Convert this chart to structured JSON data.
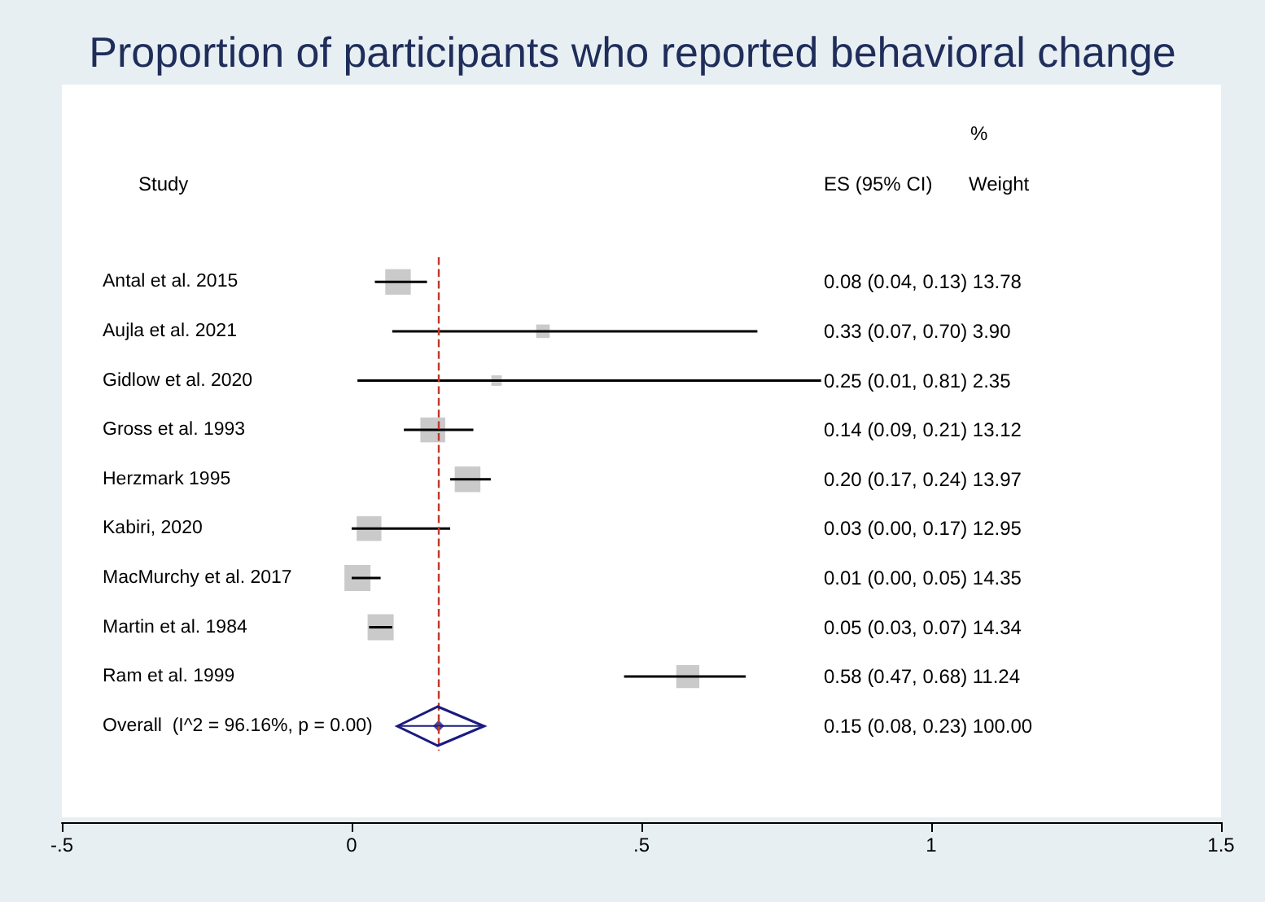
{
  "chart_data": {
    "type": "bubble",
    "title": "Proportion of participants who reported behavioral change",
    "categories": [
      "Antal et al. 2015",
      "Aujla et al. 2021",
      "Gidlow et al. 2020",
      "Gross et al. 1993",
      "Herzmark 1995",
      "Kabiri, 2020",
      "MacMurchy et al. 2017",
      "Martin et al. 1984",
      "Ram et al. 1999",
      "Overall  (I^2 = 96.16%, p = 0.00)"
    ],
    "orientation": "horizontal",
    "series": [
      {
        "color": "#bdbdbd",
        "marker": "square",
        "values": [
          0.08,
          0.33,
          0.25,
          0.14,
          0.2,
          0.03,
          0.01,
          0.05,
          0.58,
          null
        ],
        "errors": [
          [
            0.04,
            0.13
          ],
          [
            0.07,
            0.7
          ],
          [
            0.01,
            0.81
          ],
          [
            0.09,
            0.21
          ],
          [
            0.17,
            0.24
          ],
          [
            0.0,
            0.17
          ],
          [
            0.0,
            0.05
          ],
          [
            0.03,
            0.07
          ],
          [
            0.47,
            0.68
          ],
          null
        ],
        "sizes": [
          0.96,
          0.27,
          0.16,
          0.91,
          0.97,
          0.9,
          1,
          1,
          0.78,
          null
        ]
      },
      {
        "type": "scatter",
        "color": "#1a1a80",
        "marker": "diamond",
        "values": [
          null,
          null,
          null,
          null,
          null,
          null,
          null,
          null,
          null,
          0.15
        ],
        "errors": [
          null,
          null,
          null,
          null,
          null,
          null,
          null,
          null,
          null,
          [
            0.08,
            0.23
          ]
        ]
      }
    ],
    "xlim": [
      -0.5,
      1.5
    ],
    "xticks": [
      {
        "value": -0.5,
        "label": "-.5"
      },
      0,
      {
        "value": 0.5,
        "label": ".5"
      },
      1,
      1.5
    ],
    "ref_lines": [
      {
        "axis": "x",
        "value": 0.15,
        "color": "#c0392b",
        "line_style": "dashed"
      }
    ],
    "annotations": [
      "Study",
      "ES (95% CI)",
      "%",
      "Weight",
      "0.08 (0.04, 0.13) 13.78",
      "0.33 (0.07, 0.70) 3.90",
      "0.25 (0.01, 0.81) 2.35",
      "0.14 (0.09, 0.21) 13.12",
      "0.20 (0.17, 0.24) 13.97",
      "0.03 (0.00, 0.17) 12.95",
      "0.01 (0.00, 0.05) 14.35",
      "0.05 (0.03, 0.07) 14.34",
      "0.58 (0.47, 0.68) 11.24",
      "0.15 (0.08, 0.23) 100.00"
    ],
    "grid": false
  }
}
